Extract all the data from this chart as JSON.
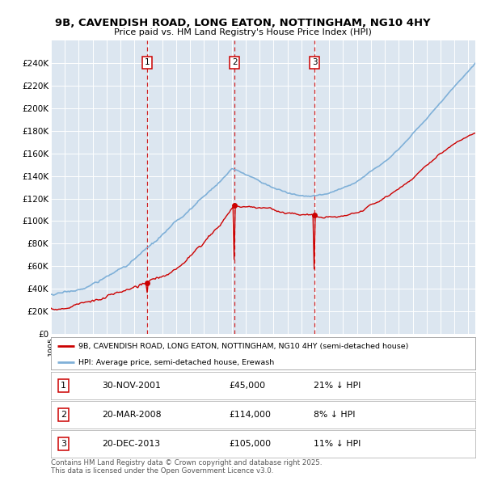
{
  "title": "9B, CAVENDISH ROAD, LONG EATON, NOTTINGHAM, NG10 4HY",
  "subtitle": "Price paid vs. HM Land Registry's House Price Index (HPI)",
  "sale_year_nums": [
    2001.917,
    2008.208,
    2013.958
  ],
  "sale_prices": [
    45000,
    114000,
    105000
  ],
  "sale_labels": [
    "1",
    "2",
    "3"
  ],
  "sale_info": [
    [
      "1",
      "30-NOV-2001",
      "£45,000",
      "21% ↓ HPI"
    ],
    [
      "2",
      "20-MAR-2008",
      "£114,000",
      "8% ↓ HPI"
    ],
    [
      "3",
      "20-DEC-2013",
      "£105,000",
      "11% ↓ HPI"
    ]
  ],
  "legend_property": "9B, CAVENDISH ROAD, LONG EATON, NOTTINGHAM, NG10 4HY (semi-detached house)",
  "legend_hpi": "HPI: Average price, semi-detached house, Erewash",
  "footer": "Contains HM Land Registry data © Crown copyright and database right 2025.\nThis data is licensed under the Open Government Licence v3.0.",
  "property_color": "#cc0000",
  "hpi_color": "#7fb0d8",
  "vline_color": "#cc0000",
  "plot_background": "#dce6f0",
  "ylim": [
    0,
    260000
  ],
  "yticks": [
    0,
    20000,
    40000,
    60000,
    80000,
    100000,
    120000,
    140000,
    160000,
    180000,
    200000,
    220000,
    240000
  ],
  "xlim_start": 1995.0,
  "xlim_end": 2025.5
}
